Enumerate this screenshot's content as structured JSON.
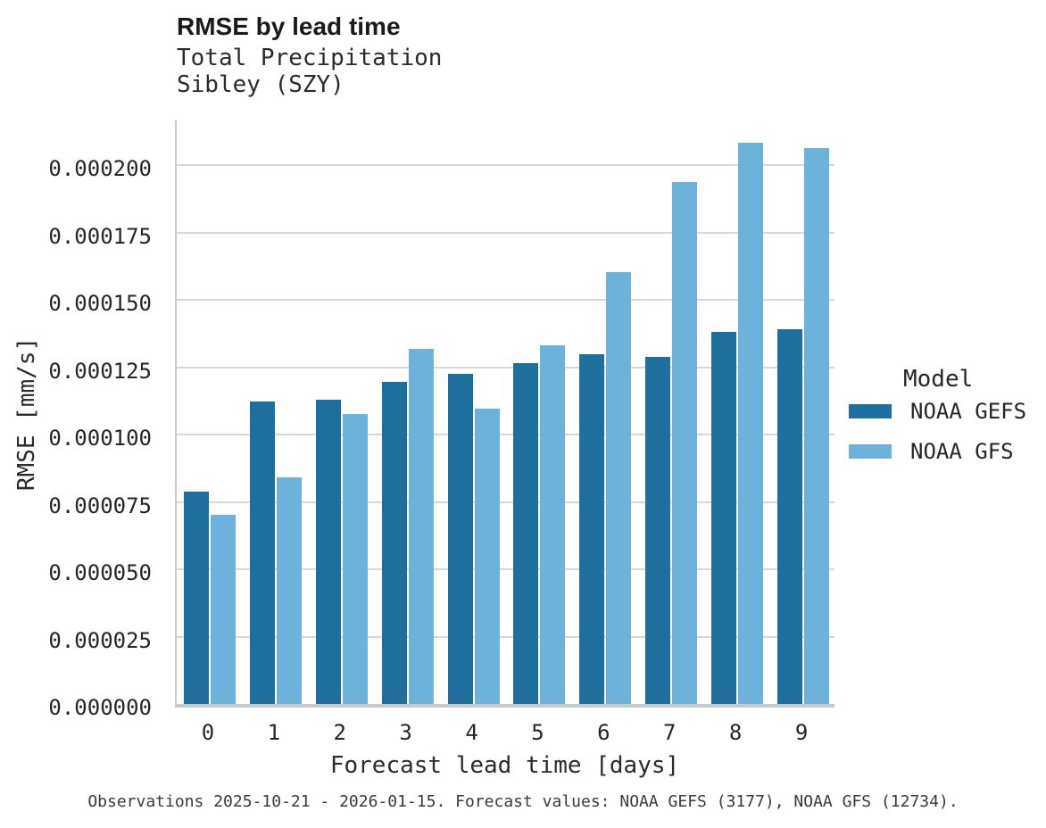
{
  "header": {
    "title": "RMSE by lead time",
    "subtitle": "Total Precipitation\nSibley (SZY)"
  },
  "chart_data": {
    "type": "bar",
    "title": "RMSE by lead time",
    "subtitle": [
      "Total Precipitation",
      "Sibley (SZY)"
    ],
    "categories": [
      "0",
      "1",
      "2",
      "3",
      "4",
      "5",
      "6",
      "7",
      "8",
      "9"
    ],
    "series": [
      {
        "name": "NOAA GEFS",
        "color": "#1f6f9e",
        "values": [
          7.9e-05,
          0.0001122,
          0.0001131,
          0.0001197,
          0.0001227,
          0.0001266,
          0.0001299,
          0.0001289,
          0.0001383,
          0.0001393
        ]
      },
      {
        "name": "NOAA GFS",
        "color": "#6db2db",
        "values": [
          7.01e-05,
          8.4e-05,
          0.0001078,
          0.000132,
          0.0001098,
          0.0001333,
          0.0001602,
          0.0001938,
          0.0002085,
          0.0002065
        ]
      }
    ],
    "xlabel": "Forecast lead time [days]",
    "ylabel": "RMSE [mm/s]",
    "ylim": [
      0,
      0.000218
    ],
    "ytick_labels": [
      "0.000000",
      "0.000025",
      "0.000050",
      "0.000075",
      "0.000100",
      "0.000125",
      "0.000150",
      "0.000175",
      "0.000200"
    ],
    "grid": "horizontal",
    "legend_title": "Model",
    "legend_position": "right"
  },
  "caption": "Observations 2025-10-21 - 2026-01-15. Forecast values: NOAA GEFS (3177), NOAA GFS (12734)."
}
